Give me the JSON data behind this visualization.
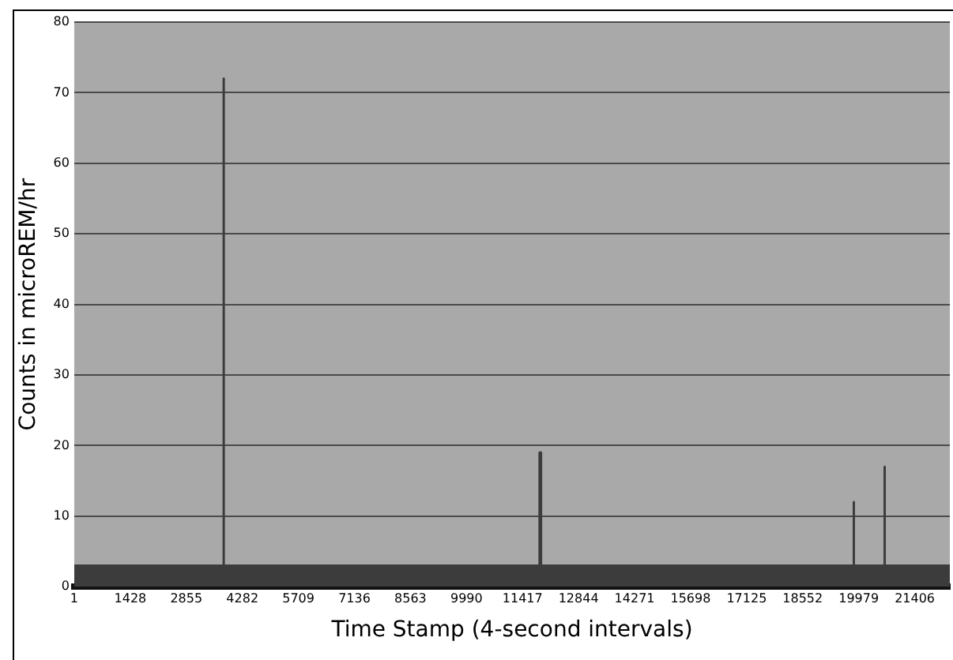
{
  "chart_data": {
    "type": "area",
    "xlabel": "Time Stamp (4-second intervals)",
    "ylabel": "Counts in microREM/hr",
    "x": [
      1,
      3790,
      3798,
      3801,
      3806,
      3814,
      3820,
      11845,
      11852,
      11880,
      11888,
      19848,
      19853,
      19858,
      20633,
      20638,
      20643,
      22300
    ],
    "series": [
      {
        "color": "#3c3c3c",
        "values": [
          3,
          3,
          72,
          43,
          43,
          43,
          3,
          3,
          19,
          19,
          3,
          3,
          12,
          3,
          3,
          17,
          3,
          3
        ]
      }
    ],
    "xlim": [
      1,
      22300
    ],
    "xticks": [
      1,
      1428,
      2855,
      4282,
      5709,
      7136,
      8563,
      9990,
      11417,
      12844,
      14271,
      15698,
      17125,
      18552,
      19979,
      21406
    ],
    "ylim": [
      0,
      80
    ],
    "yticks": [
      0,
      10,
      20,
      30,
      40,
      50,
      60,
      70,
      80
    ],
    "grid": "y",
    "legend": false
  }
}
